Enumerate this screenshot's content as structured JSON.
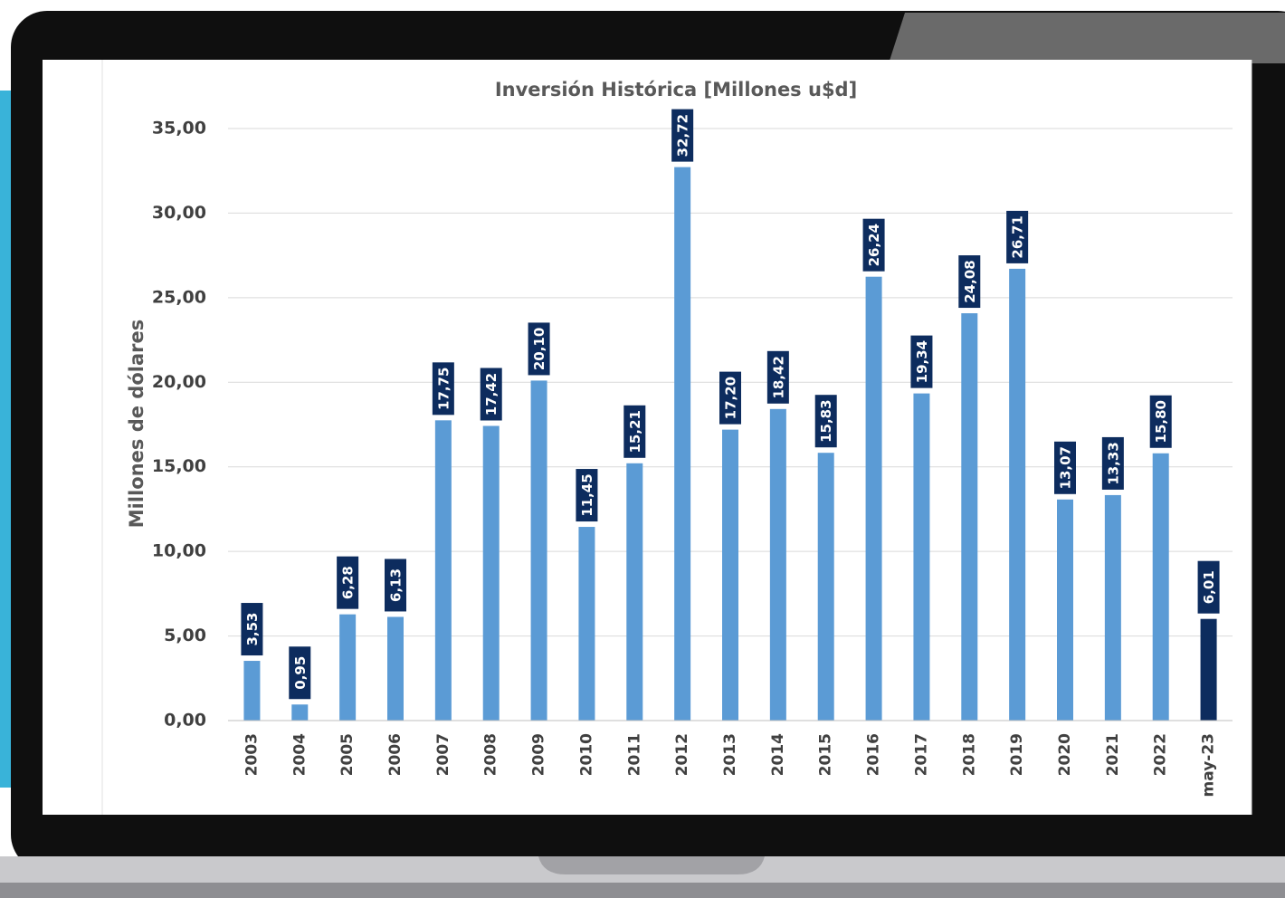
{
  "chart_data": {
    "type": "bar",
    "title": "Inversión Histórica [Millones u$d]",
    "y_label": "Millones de dólares",
    "categories": [
      "2003",
      "2004",
      "2005",
      "2006",
      "2007",
      "2008",
      "2009",
      "2010",
      "2011",
      "2012",
      "2013",
      "2014",
      "2015",
      "2016",
      "2017",
      "2018",
      "2019",
      "2020",
      "2021",
      "2022",
      "may-23"
    ],
    "values": [
      3.53,
      0.95,
      6.28,
      6.13,
      17.75,
      17.42,
      20.1,
      11.45,
      15.21,
      32.72,
      17.2,
      18.42,
      15.83,
      26.24,
      19.34,
      24.08,
      26.71,
      13.07,
      13.33,
      15.8,
      6.01
    ],
    "value_labels": [
      "3,53",
      "0,95",
      "6,28",
      "6,13",
      "17,75",
      "17,42",
      "20,10",
      "11,45",
      "15,21",
      "32,72",
      "17,20",
      "18,42",
      "15,83",
      "26,24",
      "19,34",
      "24,08",
      "26,71",
      "13,07",
      "13,33",
      "15,80",
      "6,01"
    ],
    "colors": [
      "#5b9bd5",
      "#5b9bd5",
      "#5b9bd5",
      "#5b9bd5",
      "#5b9bd5",
      "#5b9bd5",
      "#5b9bd5",
      "#5b9bd5",
      "#5b9bd5",
      "#5b9bd5",
      "#5b9bd5",
      "#5b9bd5",
      "#5b9bd5",
      "#5b9bd5",
      "#5b9bd5",
      "#5b9bd5",
      "#5b9bd5",
      "#5b9bd5",
      "#5b9bd5",
      "#5b9bd5",
      "#0d2c5e"
    ],
    "label_color": "#0d2c5e",
    "ylim": [
      0,
      35
    ],
    "yticks": [
      {
        "value": 0,
        "label": "0,00"
      },
      {
        "value": 5,
        "label": "5,00"
      },
      {
        "value": 10,
        "label": "10,00"
      },
      {
        "value": 15,
        "label": "15,00"
      },
      {
        "value": 20,
        "label": "20,00"
      },
      {
        "value": 25,
        "label": "25,00"
      },
      {
        "value": 30,
        "label": "30,00"
      },
      {
        "value": 35,
        "label": "35,00"
      }
    ],
    "grid": true
  }
}
